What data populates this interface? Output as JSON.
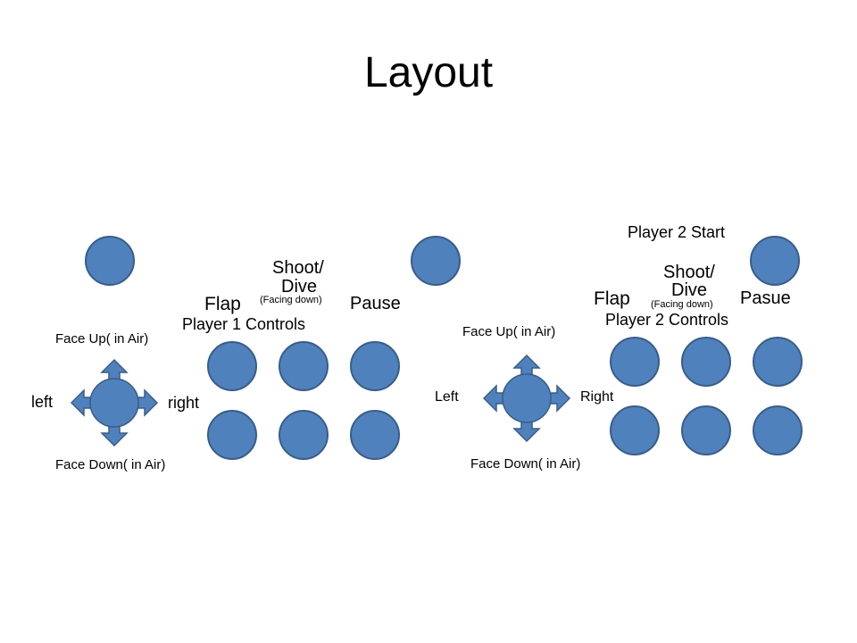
{
  "title": "Layout",
  "colors": {
    "button_fill": "#4F81BD",
    "button_stroke": "#385D8A"
  },
  "icons": {
    "dpad": "dpad-arrows-icon"
  },
  "player1": {
    "dpad": {
      "up": "Face Up( in Air)",
      "down": "Face Down( in Air)",
      "left": "left",
      "right": "right"
    },
    "flap": "Flap",
    "shoot": "Shoot/",
    "dive": "Dive",
    "facing_down": "(Facing down)",
    "pause": "Pause",
    "controls": "Player 1 Controls"
  },
  "player2": {
    "start": "Player 2 Start",
    "dpad": {
      "up": "Face Up( in Air)",
      "down": "Face Down( in Air)",
      "left": "Left",
      "right": "Right"
    },
    "flap": "Flap",
    "shoot": "Shoot/",
    "dive": "Dive",
    "facing_down": "(Facing down)",
    "pause": "Pasue",
    "controls": "Player 2 Controls"
  }
}
